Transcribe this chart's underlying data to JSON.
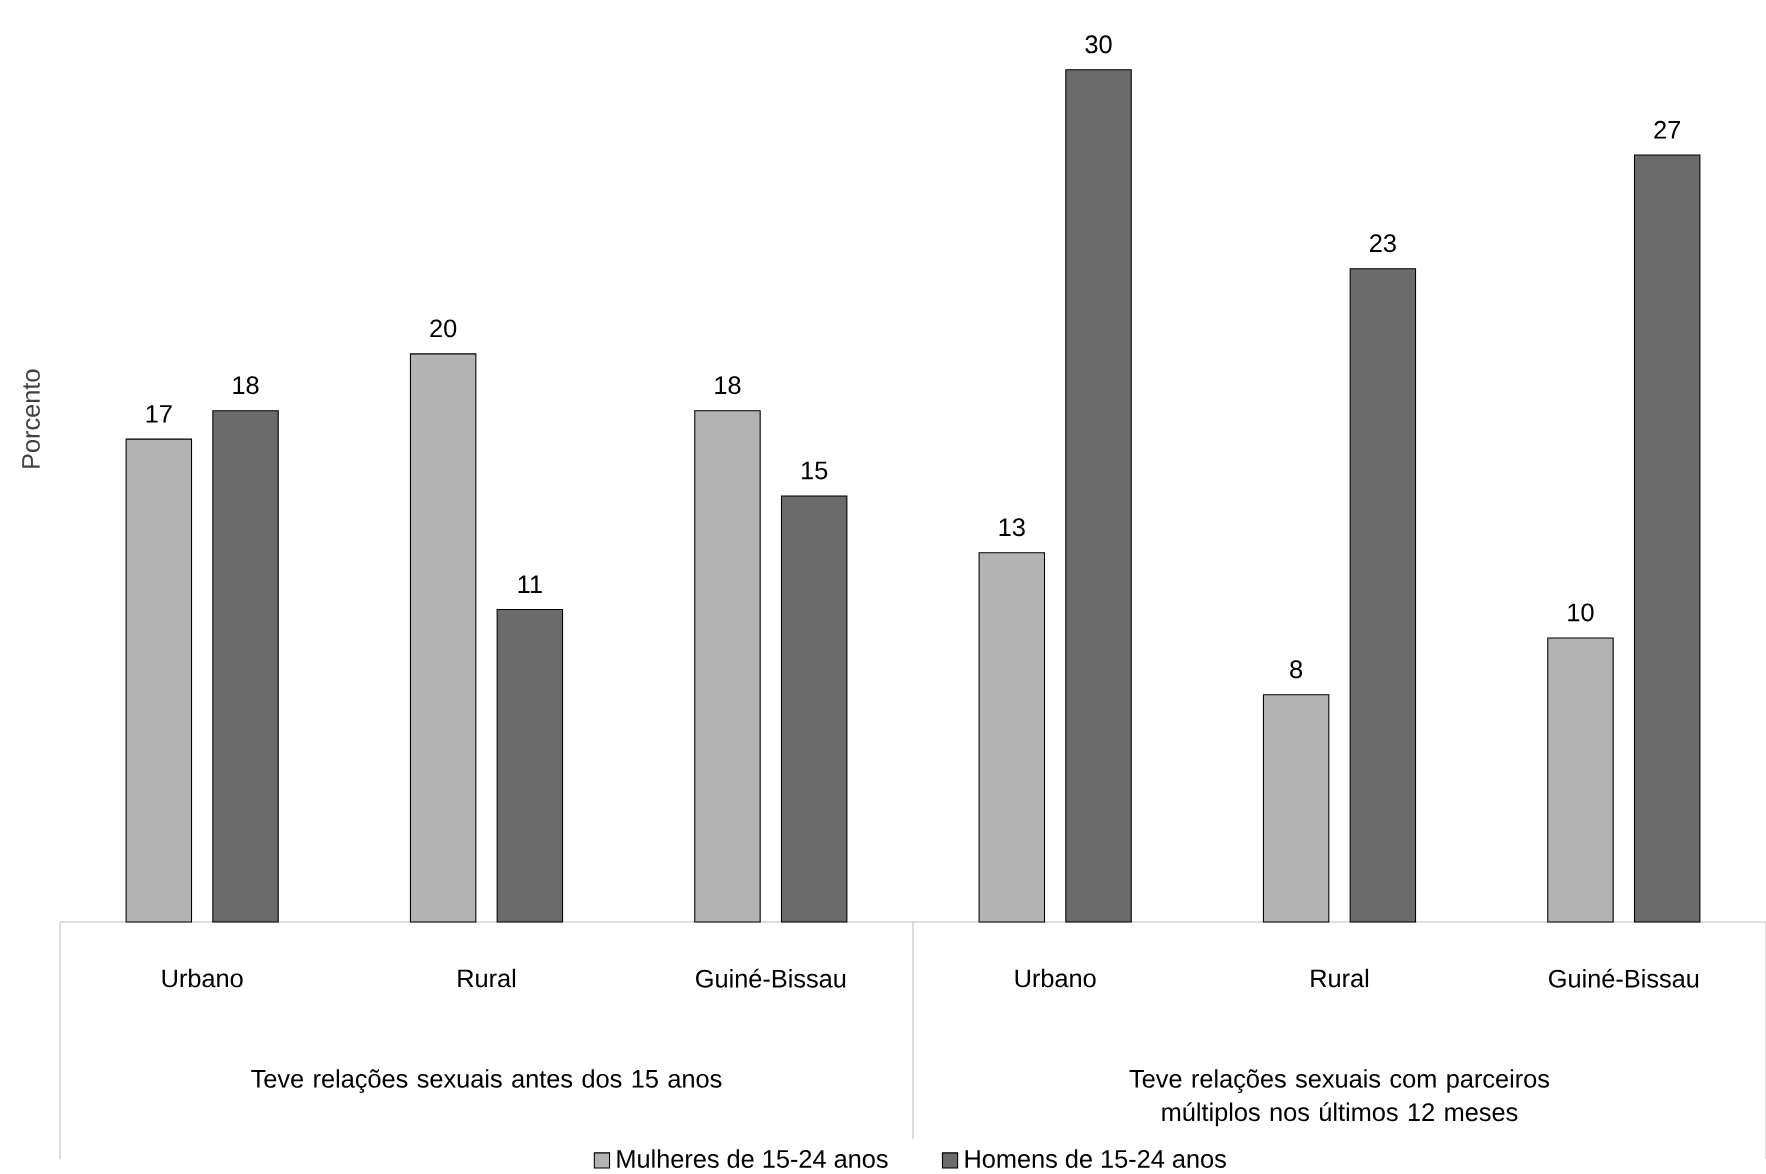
{
  "chart_data": {
    "type": "bar",
    "ylabel": "Porcento",
    "categories": [
      "Urbano",
      "Rural",
      "Guiné-Bissau",
      "Urbano",
      "Rural",
      "Guiné-Bissau"
    ],
    "series": [
      {
        "name": "Mulheres de 15-24 anos",
        "color": "#b3b3b3",
        "values": [
          17,
          20,
          18,
          13,
          8,
          10
        ]
      },
      {
        "name": "Homens de 15-24 anos",
        "color": "#6b6b6b",
        "values": [
          18,
          11,
          15,
          30,
          23,
          27
        ]
      }
    ],
    "annotations": [
      "Teve relações sexuais antes dos 15 anos",
      "Teve relações sexuais com parceiros múltiplos nos últimos 12 meses"
    ],
    "data_labels": true,
    "legend": "bottom"
  }
}
